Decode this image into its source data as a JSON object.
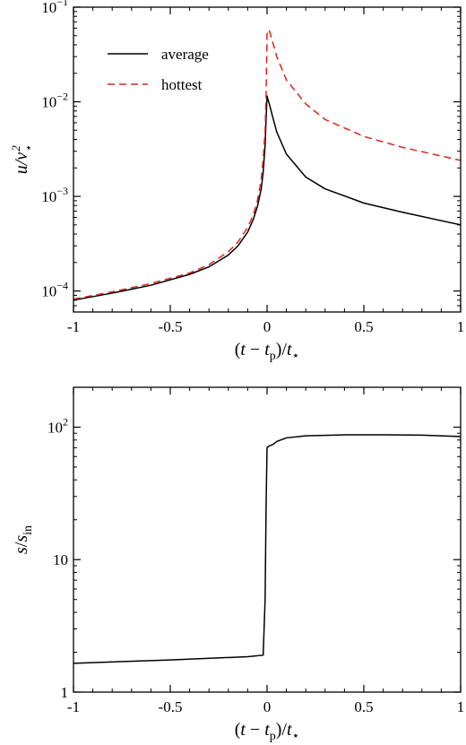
{
  "chart_data": [
    {
      "type": "line",
      "title": "",
      "xlabel": "(t − t_p)/t_⋆",
      "ylabel": "u/v_⋆^2",
      "xlim": [
        -1,
        1
      ],
      "ylim": [
        6e-05,
        0.1
      ],
      "yscale": "log",
      "x_ticks": [
        "-1",
        "-0.5",
        "0",
        "0.5",
        "1"
      ],
      "y_ticks": [
        "10^-4",
        "10^-3",
        "10^-2",
        "10^-1"
      ],
      "legend_position": "top-left",
      "series": [
        {
          "name": "average",
          "color": "#000000",
          "dash": "solid",
          "x": [
            -1.0,
            -0.8,
            -0.6,
            -0.4,
            -0.3,
            -0.2,
            -0.15,
            -0.1,
            -0.07,
            -0.05,
            -0.03,
            -0.02,
            -0.01,
            -0.005,
            0.0,
            0.005,
            0.01,
            0.03,
            0.05,
            0.1,
            0.2,
            0.3,
            0.5,
            0.7,
            1.0
          ],
          "y": [
            8e-05,
            9.5e-05,
            0.000115,
            0.00015,
            0.00018,
            0.00024,
            0.0003,
            0.00042,
            0.00058,
            0.00078,
            0.0012,
            0.0018,
            0.0035,
            0.0065,
            0.0115,
            0.0105,
            0.0098,
            0.0068,
            0.0048,
            0.0028,
            0.0016,
            0.0012,
            0.00085,
            0.00068,
            0.0005
          ]
        },
        {
          "name": "hottest",
          "color": "#d9251c",
          "dash": "dashed",
          "x": [
            -1.0,
            -0.8,
            -0.6,
            -0.4,
            -0.3,
            -0.2,
            -0.15,
            -0.1,
            -0.07,
            -0.05,
            -0.03,
            -0.02,
            -0.01,
            -0.005,
            0.0,
            0.01,
            0.03,
            0.05,
            0.1,
            0.2,
            0.3,
            0.5,
            0.7,
            1.0
          ],
          "y": [
            8.2e-05,
            9.8e-05,
            0.00012,
            0.000155,
            0.00019,
            0.00026,
            0.00033,
            0.00047,
            0.00065,
            0.0009,
            0.0015,
            0.0025,
            0.005,
            0.012,
            0.052,
            0.058,
            0.042,
            0.03,
            0.017,
            0.0095,
            0.0065,
            0.0043,
            0.0033,
            0.0024
          ]
        }
      ]
    },
    {
      "type": "line",
      "title": "",
      "xlabel": "(t − t_p)/t_⋆",
      "ylabel": "s/s_in",
      "xlim": [
        -1,
        1
      ],
      "ylim": [
        1,
        200
      ],
      "yscale": "log",
      "x_ticks": [
        "-1",
        "-0.5",
        "0",
        "0.5",
        "1"
      ],
      "y_ticks": [
        "1",
        "10",
        "10^2"
      ],
      "series": [
        {
          "color": "#000000",
          "dash": "solid",
          "x": [
            -1.0,
            -0.5,
            -0.1,
            -0.02,
            -0.01,
            -0.005,
            0.0,
            0.01,
            0.03,
            0.05,
            0.1,
            0.2,
            0.4,
            0.6,
            0.8,
            1.0
          ],
          "y": [
            1.65,
            1.75,
            1.85,
            1.9,
            5.0,
            25.0,
            70.0,
            72.0,
            74.0,
            78.0,
            83.0,
            86.0,
            87.5,
            87.5,
            87.0,
            85.0
          ]
        }
      ]
    }
  ]
}
